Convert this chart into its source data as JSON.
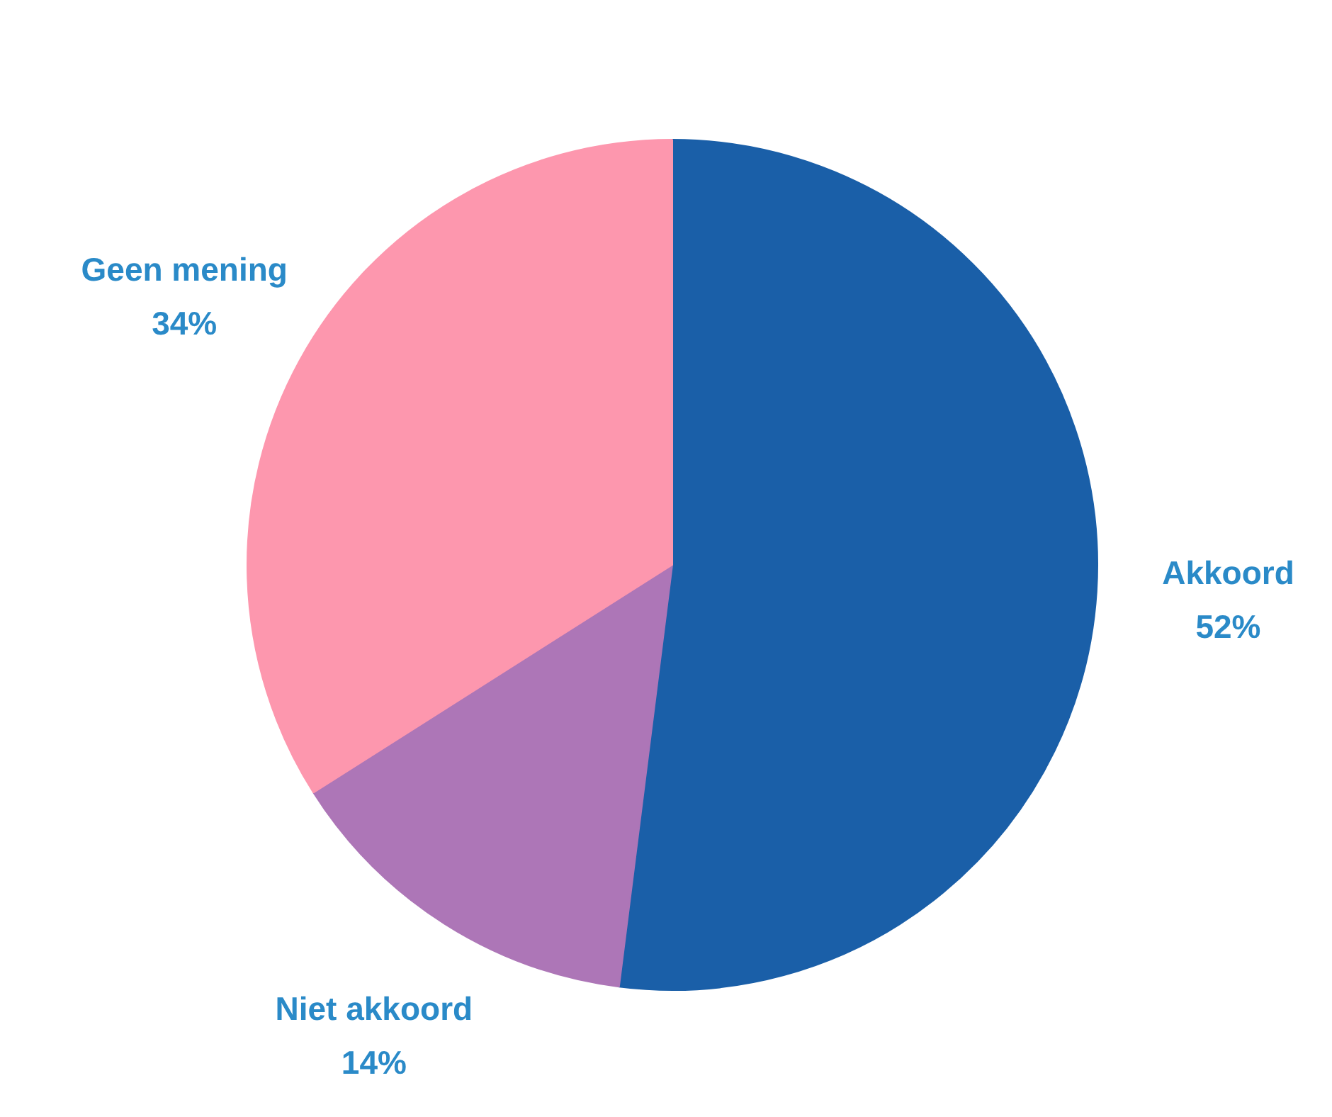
{
  "chart_data": {
    "type": "pie",
    "categories": [
      "Akkoord",
      "Niet akkoord",
      "Geen mening"
    ],
    "values": [
      52,
      14,
      34
    ],
    "colors": [
      "#1a5fa8",
      "#ad76b7",
      "#fd97ae"
    ],
    "value_labels": [
      "52%",
      "14%",
      "34%"
    ]
  }
}
